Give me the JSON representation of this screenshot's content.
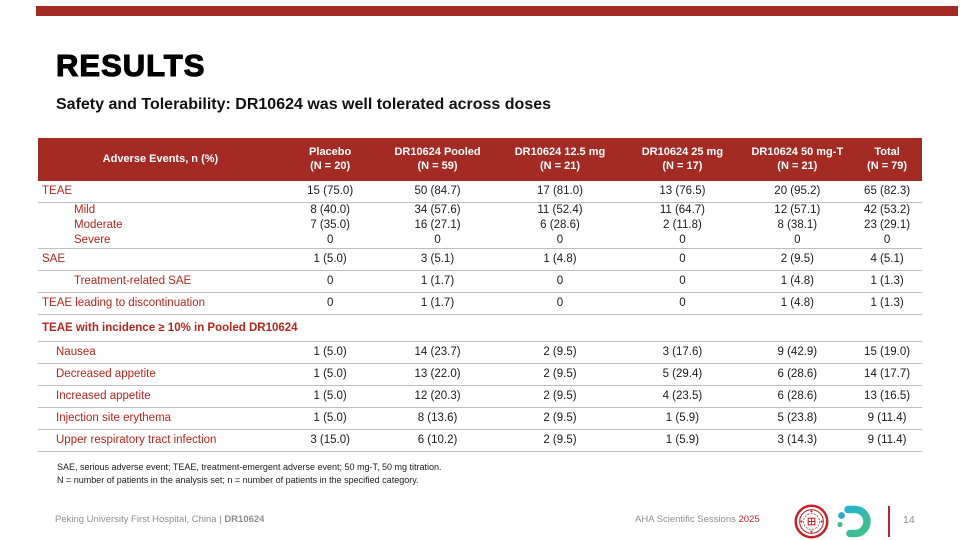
{
  "slide": {
    "title": "RESULTS",
    "subtitle": "Safety and Tolerability: DR10624 was well tolerated across doses",
    "accent_color": "#A32B24",
    "label_red": "#B3261E"
  },
  "table": {
    "row_header": "Adverse Events, n (%)",
    "columns": [
      {
        "label": "Placebo",
        "n": "(N = 20)"
      },
      {
        "label": "DR10624 Pooled",
        "n": "(N = 59)"
      },
      {
        "label": "DR10624 12.5 mg",
        "n": "(N = 21)"
      },
      {
        "label": "DR10624 25 mg",
        "n": "(N = 17)"
      },
      {
        "label": "DR10624 50 mg-T",
        "n": "(N = 21)"
      },
      {
        "label": "Total",
        "n": "(N = 79)"
      }
    ],
    "rows": [
      {
        "label": "TEAE",
        "indent": 0,
        "values": [
          "15 (75.0)",
          "50 (84.7)",
          "17 (81.0)",
          "13 (76.5)",
          "20 (95.2)",
          "65 (82.3)"
        ],
        "divider": true
      },
      {
        "label": "Mild",
        "indent": 2,
        "compact": true,
        "values": [
          "8 (40.0)",
          "34 (57.6)",
          "11 (52.4)",
          "11 (64.7)",
          "12 (57.1)",
          "42 (53.2)"
        ],
        "divider": false
      },
      {
        "label": "Moderate",
        "indent": 2,
        "compact": true,
        "values": [
          "7 (35.0)",
          "16 (27.1)",
          "6 (28.6)",
          "2 (11.8)",
          "8 (38.1)",
          "23 (29.1)"
        ],
        "divider": false
      },
      {
        "label": "Severe",
        "indent": 2,
        "compact": true,
        "values": [
          "0",
          "0",
          "0",
          "0",
          "0",
          "0"
        ],
        "divider": true
      },
      {
        "label": "SAE",
        "indent": 0,
        "values": [
          "1 (5.0)",
          "3 (5.1)",
          "1 (4.8)",
          "0",
          "2 (9.5)",
          "4 (5.1)"
        ],
        "divider": true
      },
      {
        "label": "Treatment-related SAE",
        "indent": 2,
        "values": [
          "0",
          "1 (1.7)",
          "0",
          "0",
          "1 (4.8)",
          "1 (1.3)"
        ],
        "divider": true
      },
      {
        "label": "TEAE leading to discontinuation",
        "indent": 0,
        "values": [
          "0",
          "1 (1.7)",
          "0",
          "0",
          "1 (4.8)",
          "1 (1.3)"
        ],
        "divider": true
      },
      {
        "label": "TEAE with incidence ≥ 10% in Pooled DR10624",
        "section": true,
        "divider": true
      },
      {
        "label": "Nausea",
        "indent": 1,
        "values": [
          "1 (5.0)",
          "14 (23.7)",
          "2 (9.5)",
          "3 (17.6)",
          "9 (42.9)",
          "15 (19.0)"
        ],
        "divider": true
      },
      {
        "label": "Decreased appetite",
        "indent": 1,
        "values": [
          "1 (5.0)",
          "13 (22.0)",
          "2 (9.5)",
          "5 (29.4)",
          "6 (28.6)",
          "14 (17.7)"
        ],
        "divider": true
      },
      {
        "label": "Increased appetite",
        "indent": 1,
        "values": [
          "1 (5.0)",
          "12 (20.3)",
          "2 (9.5)",
          "4 (23.5)",
          "6 (28.6)",
          "13 (16.5)"
        ],
        "divider": true
      },
      {
        "label": "Injection site erythema",
        "indent": 1,
        "values": [
          "1 (5.0)",
          "8 (13.6)",
          "2 (9.5)",
          "1 (5.9)",
          "5 (23.8)",
          "9 (11.4)"
        ],
        "divider": true
      },
      {
        "label": "Upper respiratory tract infection",
        "indent": 1,
        "values": [
          "3 (15.0)",
          "6 (10.2)",
          "2 (9.5)",
          "1 (5.9)",
          "3 (14.3)",
          "9 (11.4)"
        ],
        "divider": true
      }
    ]
  },
  "footnotes": [
    "SAE, serious adverse event; TEAE, treatment-emergent adverse event; 50 mg-T, 50 mg titration.",
    "N = number of patients in the analysis set; n = number of patients in the specified category."
  ],
  "footer": {
    "left_text": "Peking University First Hospital, China | ",
    "left_bold": "DR10624",
    "right_text": "AHA Scientific Sessions ",
    "right_year": "2025",
    "page_number": "14",
    "icon_names": [
      "hospital-seal-logo",
      "doer-bio-logo"
    ]
  }
}
